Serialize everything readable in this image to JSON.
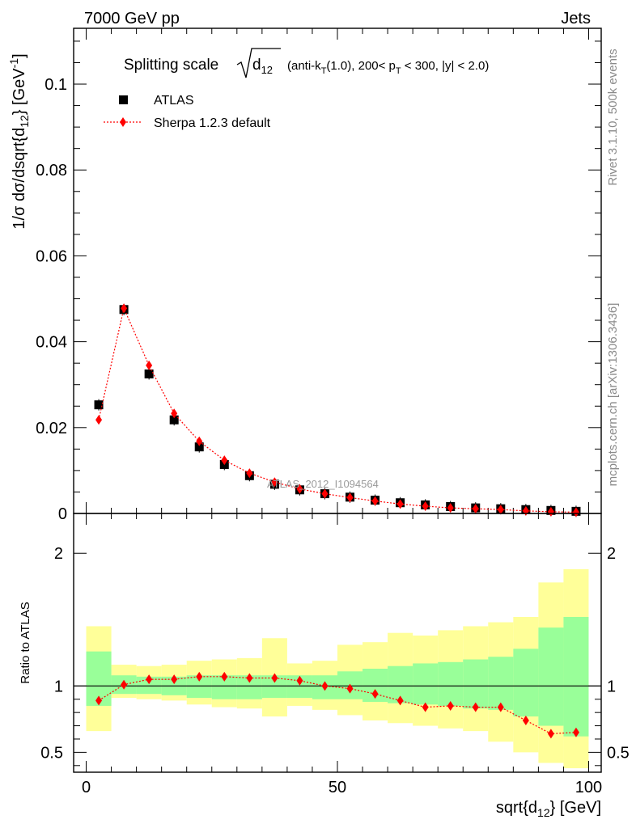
{
  "header": {
    "left": "7000 GeV pp",
    "right": "Jets"
  },
  "side_labels": {
    "rivet": "Rivet 3.1.10,  500k events",
    "source": "mcplots.cern.ch [arXiv:1306.3436]"
  },
  "watermark": "ATLAS_2012_I1094564",
  "chart_data": [
    {
      "type": "scatter",
      "panel": "main",
      "title_main": "Splitting scale",
      "title_rest": "(anti-k_T(1.0), 200< p_T < 300, |y| < 2.0)",
      "ylabel": "1/σ dσ/dsqrt{d_12} [GeV^-1]",
      "xlabel": "sqrt{d_12} [GeV]",
      "xlim": [
        -2.5,
        102.5
      ],
      "ylim": [
        0,
        0.113
      ],
      "yticks": [
        "0",
        "0.02",
        "0.04",
        "0.06",
        "0.08",
        "0.1"
      ],
      "xticks": [
        "0",
        "50",
        "100"
      ],
      "legend": [
        "ATLAS",
        "Sherpa 1.2.3 default"
      ],
      "legend_position": "top-left",
      "x": [
        2.5,
        7.5,
        12.5,
        17.5,
        22.5,
        27.5,
        32.5,
        37.5,
        42.5,
        47.5,
        52.5,
        57.5,
        62.5,
        67.5,
        72.5,
        77.5,
        82.5,
        87.5,
        92.5,
        97.5
      ],
      "series": [
        {
          "name": "ATLAS",
          "color": "#000000",
          "marker": "square",
          "values": [
            0.0253,
            0.0475,
            0.0325,
            0.0218,
            0.0155,
            0.0114,
            0.0088,
            0.0068,
            0.0055,
            0.0046,
            0.0038,
            0.0031,
            0.0025,
            0.002,
            0.0016,
            0.0013,
            0.0011,
            0.0009,
            0.0007,
            0.0005
          ]
        },
        {
          "name": "Sherpa 1.2.3 default",
          "color": "#ff0000",
          "marker": "diamond",
          "line": "dotted",
          "values": [
            0.0218,
            0.0478,
            0.0345,
            0.0233,
            0.0168,
            0.0124,
            0.0094,
            0.0073,
            0.0057,
            0.0046,
            0.0037,
            0.0029,
            0.0022,
            0.0017,
            0.0013,
            0.0011,
            0.0009,
            0.0006,
            0.0004,
            0.0003
          ]
        }
      ]
    },
    {
      "type": "line",
      "panel": "ratio",
      "ylabel": "Ratio to ATLAS",
      "xlim": [
        -2.5,
        102.5
      ],
      "ylim": [
        0.35,
        2.3
      ],
      "yticks": [
        "0.5",
        "1",
        "2"
      ],
      "bins": [
        0,
        5,
        10,
        15,
        20,
        25,
        30,
        35,
        40,
        45,
        50,
        55,
        60,
        65,
        70,
        75,
        80,
        85,
        90,
        95,
        100
      ],
      "band_outer": {
        "color": "#ffff99",
        "lo": [
          0.66,
          0.91,
          0.9,
          0.89,
          0.86,
          0.84,
          0.83,
          0.77,
          0.85,
          0.82,
          0.78,
          0.74,
          0.72,
          0.7,
          0.68,
          0.66,
          0.58,
          0.5,
          0.42,
          0.38
        ],
        "hi": [
          1.45,
          1.16,
          1.15,
          1.16,
          1.19,
          1.2,
          1.21,
          1.36,
          1.17,
          1.19,
          1.31,
          1.33,
          1.4,
          1.38,
          1.42,
          1.45,
          1.48,
          1.52,
          1.78,
          1.88
        ]
      },
      "band_inner": {
        "color": "#99ff99",
        "lo": [
          0.85,
          0.94,
          0.94,
          0.93,
          0.91,
          0.9,
          0.9,
          0.91,
          0.91,
          0.9,
          0.9,
          0.88,
          0.87,
          0.86,
          0.85,
          0.83,
          0.82,
          0.77,
          0.7,
          0.62
        ],
        "hi": [
          1.26,
          1.08,
          1.07,
          1.07,
          1.08,
          1.08,
          1.08,
          1.08,
          1.08,
          1.08,
          1.11,
          1.13,
          1.15,
          1.17,
          1.18,
          1.2,
          1.22,
          1.28,
          1.44,
          1.52
        ]
      },
      "series": [
        {
          "name": "Sherpa 1.2.3 default",
          "color": "#ff0000",
          "marker": "diamond",
          "line": "dotted",
          "x": [
            2.5,
            7.5,
            12.5,
            17.5,
            22.5,
            27.5,
            32.5,
            37.5,
            42.5,
            47.5,
            52.5,
            57.5,
            62.5,
            67.5,
            72.5,
            77.5,
            82.5,
            87.5,
            92.5,
            97.5
          ],
          "values": [
            0.89,
            1.01,
            1.05,
            1.05,
            1.07,
            1.07,
            1.06,
            1.06,
            1.04,
            1.0,
            0.98,
            0.94,
            0.89,
            0.84,
            0.85,
            0.84,
            0.84,
            0.74,
            0.64,
            0.65
          ]
        }
      ]
    }
  ]
}
